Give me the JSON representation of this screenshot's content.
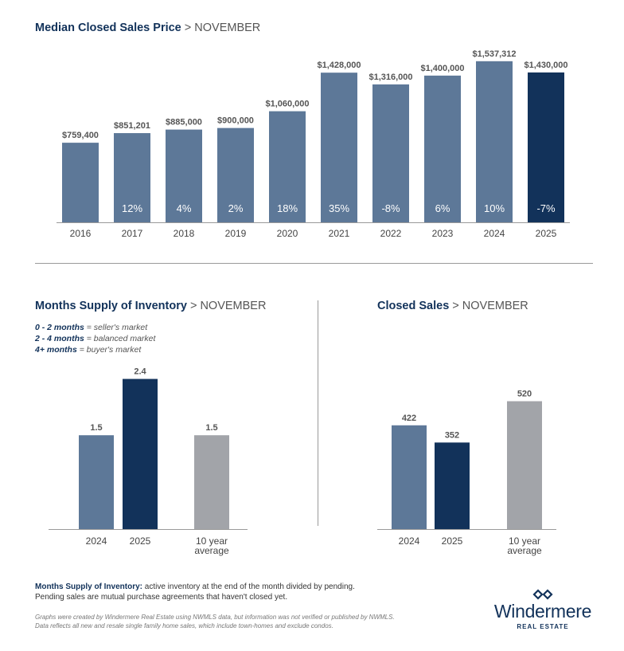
{
  "titles": {
    "median": {
      "bold": "Median Closed Sales Price",
      "sep": ">",
      "month": "NOVEMBER"
    },
    "supply": {
      "bold": "Months Supply of Inventory",
      "sep": ">",
      "month": "NOVEMBER"
    },
    "closed": {
      "bold": "Closed Sales",
      "sep": ">",
      "month": "NOVEMBER"
    }
  },
  "legend": [
    {
      "key": "0 - 2 months",
      "text": " = seller's market"
    },
    {
      "key": "2 - 4 months",
      "text": " = balanced market"
    },
    {
      "key": "4+ months",
      "text": " = buyer's market"
    }
  ],
  "note": {
    "key": "Months Supply of Inventory:",
    "text": " active inventory at the end of the month divided by pending.",
    "line2": "Pending sales are mutual purchase agreements that haven't closed yet."
  },
  "disclaimer": {
    "line1": "Graphs were created by Windermere Real Estate using NWMLS data, but information was not verified or published by NWMLS.",
    "line2": "Data reflects all new and resale single family home sales, which include town-homes and exclude condos."
  },
  "logo": {
    "name": "Windermere",
    "sub": "REAL ESTATE"
  },
  "colors": {
    "steel": "#5d7898",
    "navy": "#12325a",
    "gray": "#a2a4a9"
  },
  "chart_data": [
    {
      "id": "median",
      "type": "bar",
      "categories": [
        "2016",
        "2017",
        "2018",
        "2019",
        "2020",
        "2021",
        "2022",
        "2023",
        "2024",
        "2025"
      ],
      "values": [
        759400,
        851201,
        885000,
        900000,
        1060000,
        1428000,
        1316000,
        1400000,
        1537312,
        1430000
      ],
      "labels": [
        "$759,400",
        "$851,201",
        "$885,000",
        "$900,000",
        "$1,060,000",
        "$1,428,000",
        "$1,316,000",
        "$1,400,000",
        "$1,537,312",
        "$1,430,000"
      ],
      "changes": [
        "",
        "12%",
        "4%",
        "2%",
        "18%",
        "35%",
        "-8%",
        "6%",
        "10%",
        "-7%"
      ],
      "colors": [
        "steel",
        "steel",
        "steel",
        "steel",
        "steel",
        "steel",
        "steel",
        "steel",
        "steel",
        "navy"
      ],
      "ylim": [
        0,
        1650000
      ],
      "xlabel": "",
      "ylabel": ""
    },
    {
      "id": "supply",
      "type": "bar",
      "categories": [
        [
          "2024"
        ],
        [
          "2025"
        ],
        [
          "10 year",
          "average"
        ]
      ],
      "values": [
        1.5,
        2.4,
        1.5
      ],
      "labels": [
        "1.5",
        "2.4",
        "1.5"
      ],
      "colors": [
        "steel",
        "navy",
        "gray"
      ],
      "ylim": [
        0,
        2.7
      ]
    },
    {
      "id": "closed",
      "type": "bar",
      "categories": [
        [
          "2024"
        ],
        [
          "2025"
        ],
        [
          "10 year",
          "average"
        ]
      ],
      "values": [
        422,
        352,
        520
      ],
      "labels": [
        "422",
        "352",
        "520"
      ],
      "colors": [
        "steel",
        "navy",
        "gray"
      ],
      "ylim": [
        0,
        580
      ]
    }
  ]
}
